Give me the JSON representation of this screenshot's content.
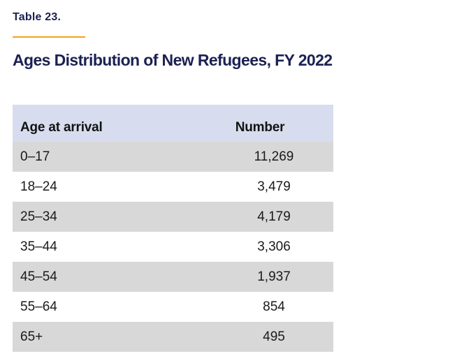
{
  "colors": {
    "page_bg": "#ffffff",
    "caption_navy": "#1b2152",
    "accent_orange": "#f6a01e",
    "header_row_bg": "#d7ddee",
    "stripe_row_bg": "#d8d8d8",
    "header_text": "#131313",
    "body_text": "#1a1a1a"
  },
  "caption": {
    "label": "Table 23."
  },
  "title": "Ages Distribution of New Refugees, FY 2022",
  "chart_data": {
    "type": "table",
    "caption_label": "Table 23.",
    "title": "Ages Distribution of New Refugees, FY 2022",
    "columns": [
      "Age at arrival",
      "Number"
    ],
    "rows": [
      [
        "0–17",
        "11,269"
      ],
      [
        "18–24",
        "3,479"
      ],
      [
        "25–34",
        "4,179"
      ],
      [
        "35–44",
        "3,306"
      ],
      [
        "45–54",
        "1,937"
      ],
      [
        "55–64",
        "854"
      ],
      [
        "65+",
        "495"
      ]
    ],
    "values_numeric": [
      11269,
      3479,
      4179,
      3306,
      1937,
      854,
      495
    ],
    "layout": {
      "row_striping": "alternating gray starting with first data row",
      "number_alignment": "center",
      "age_alignment": "left"
    }
  }
}
